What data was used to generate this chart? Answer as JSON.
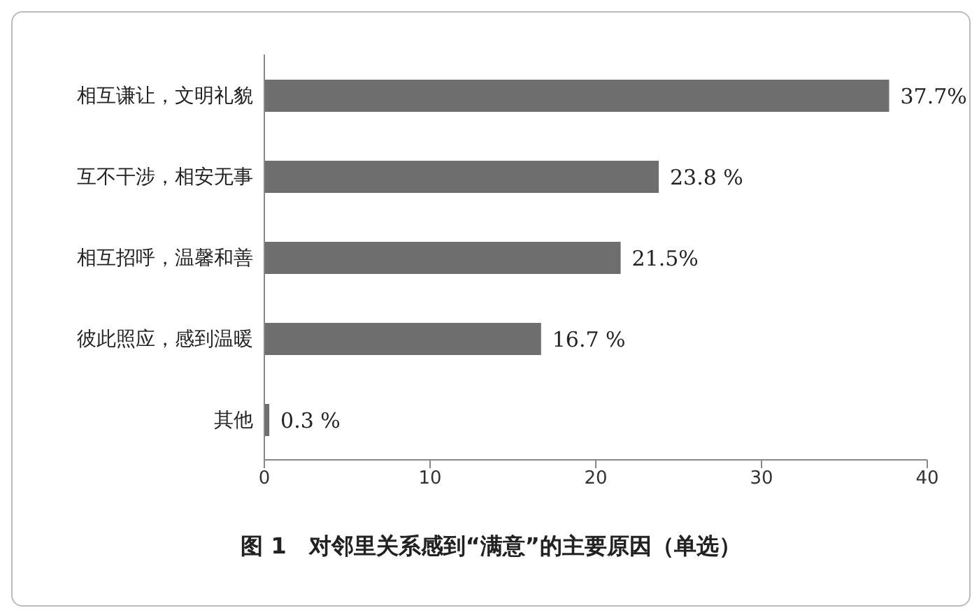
{
  "chart_data": {
    "type": "bar",
    "orientation": "horizontal",
    "title": "图 1　对邻里关系感到“满意”的主要原因（单选）",
    "categories": [
      "相互谦让，文明礼貌",
      "互不干涉，相安无事",
      "相互招呼，温馨和善",
      "彼此照应，感到温暖",
      "其他"
    ],
    "values": [
      37.7,
      23.8,
      21.5,
      16.7,
      0.3
    ],
    "value_labels": [
      "37.7%",
      "23.8 %",
      "21.5%",
      "16.7 %",
      "0.3 %"
    ],
    "color": "#6e6e6e",
    "xlim": [
      0,
      40
    ],
    "xticks": [
      0,
      10,
      20,
      30,
      40
    ],
    "grid": false,
    "legend": false
  }
}
